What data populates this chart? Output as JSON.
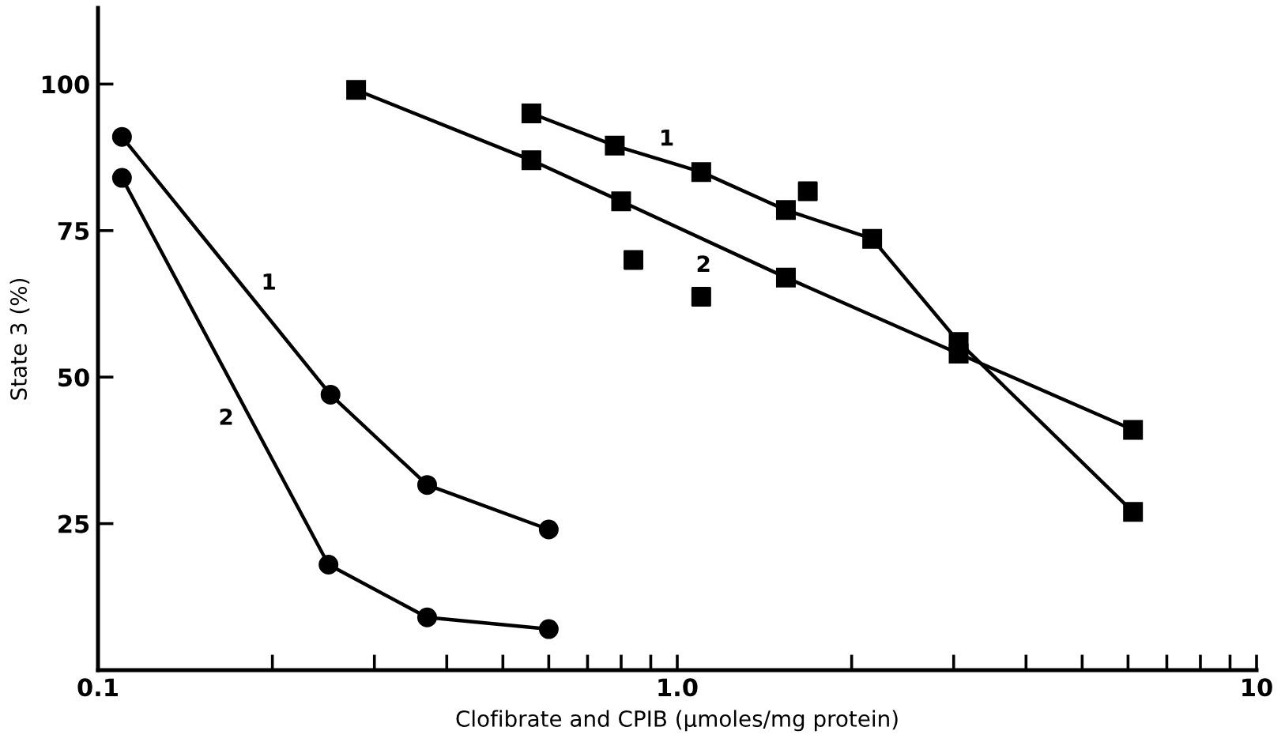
{
  "chart_data": {
    "type": "line",
    "xlabel": "Clofibrate and CPIB (μmoles/mg protein)",
    "ylabel": "State 3 (%)",
    "log": "x",
    "xlim": [
      0.1,
      10
    ],
    "ylim": [
      0,
      113
    ],
    "xticks": [
      0.1,
      {
        "value": 0.2,
        "label": null
      },
      {
        "value": 0.3,
        "label": null
      },
      {
        "value": 0.4,
        "label": null
      },
      {
        "value": 0.5,
        "label": null
      },
      {
        "value": 0.6,
        "label": null
      },
      {
        "value": 0.7,
        "label": null
      },
      {
        "value": 0.8,
        "label": null
      },
      {
        "value": 0.9,
        "label": null
      },
      {
        "value": 1,
        "label": "1.0"
      },
      {
        "value": 2,
        "label": null
      },
      {
        "value": 3,
        "label": null
      },
      {
        "value": 4,
        "label": null
      },
      {
        "value": 5,
        "label": null
      },
      {
        "value": 6,
        "label": null
      },
      {
        "value": 7,
        "label": null
      },
      {
        "value": 8,
        "label": null
      },
      {
        "value": 9,
        "label": null
      },
      10
    ],
    "yticks": [
      25,
      50,
      75,
      100
    ],
    "grid": false,
    "legend": false,
    "series": [
      {
        "name": "1",
        "color": "#000000",
        "marker": "circle",
        "x": [
          0.11,
          0.252,
          0.37,
          0.6
        ],
        "values": [
          91,
          47,
          31.6,
          24
        ]
      },
      {
        "name": "2",
        "color": "#000000",
        "marker": "circle",
        "x": [
          0.11,
          0.25,
          0.37,
          0.6
        ],
        "values": [
          84,
          18,
          9,
          7
        ]
      },
      {
        "name": "1",
        "color": "#000000",
        "marker": "square",
        "x": [
          0.56,
          0.78,
          1.1,
          1.54,
          2.17,
          3.06,
          6.12
        ],
        "values": [
          95,
          89.5,
          85,
          78.5,
          73.6,
          56,
          27
        ]
      },
      {
        "name": "2",
        "color": "#000000",
        "marker": "square",
        "x": [
          0.279,
          0.56,
          0.8,
          1.54,
          3.06,
          6.12
        ],
        "values": [
          99,
          87,
          80,
          67,
          54,
          41
        ]
      },
      {
        "type": "scatter",
        "color": "#000000",
        "marker": "square",
        "x": [
          0.84,
          1.1,
          1.68
        ],
        "values": [
          70,
          63.7,
          81.7
        ]
      }
    ]
  }
}
